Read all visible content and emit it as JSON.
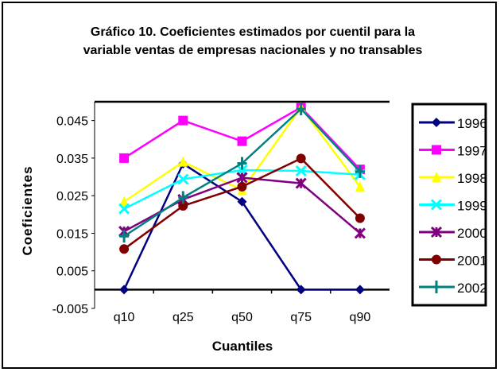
{
  "chart_data": {
    "type": "line",
    "title_lines": [
      "Gráfico 10. Coeficientes estimados por cuentil para la",
      "variable ventas de empresas nacionales y no transables"
    ],
    "xlabel": "Cuantiles",
    "ylabel": "Coeficientes",
    "categories": [
      "q10",
      "q25",
      "q50",
      "q75",
      "q90"
    ],
    "ylim": [
      -0.005,
      0.05
    ],
    "yticks": [
      -0.005,
      0.005,
      0.015,
      0.025,
      0.035,
      0.045
    ],
    "ytick_labels": [
      "-0.005",
      "0.005",
      "0.015",
      "0.025",
      "0.035",
      "0.045"
    ],
    "grid": false,
    "legend_position": "right",
    "series": [
      {
        "name": "1996",
        "color": "#000080",
        "marker": "diamond",
        "values": [
          0.0,
          0.0335,
          0.0234,
          0.0,
          0.0
        ]
      },
      {
        "name": "1997",
        "color": "#ff00ff",
        "marker": "square",
        "values": [
          0.035,
          0.045,
          0.0395,
          0.0485,
          0.032
        ]
      },
      {
        "name": "1998",
        "color": "#ffff00",
        "marker": "triangle",
        "values": [
          0.0234,
          0.034,
          0.0265,
          0.0485,
          0.0274
        ]
      },
      {
        "name": "1999",
        "color": "#00ffff",
        "marker": "x",
        "values": [
          0.0215,
          0.0294,
          0.0318,
          0.0316,
          0.0306
        ]
      },
      {
        "name": "2000",
        "color": "#800080",
        "marker": "star",
        "values": [
          0.0155,
          0.024,
          0.0298,
          0.0283,
          0.015
        ]
      },
      {
        "name": "2001",
        "color": "#800000",
        "marker": "circle",
        "values": [
          0.0108,
          0.0223,
          0.0274,
          0.0349,
          0.019
        ]
      },
      {
        "name": "2002",
        "color": "#008080",
        "marker": "plus",
        "values": [
          0.0142,
          0.0245,
          0.0336,
          0.0481,
          0.0314
        ]
      }
    ]
  }
}
